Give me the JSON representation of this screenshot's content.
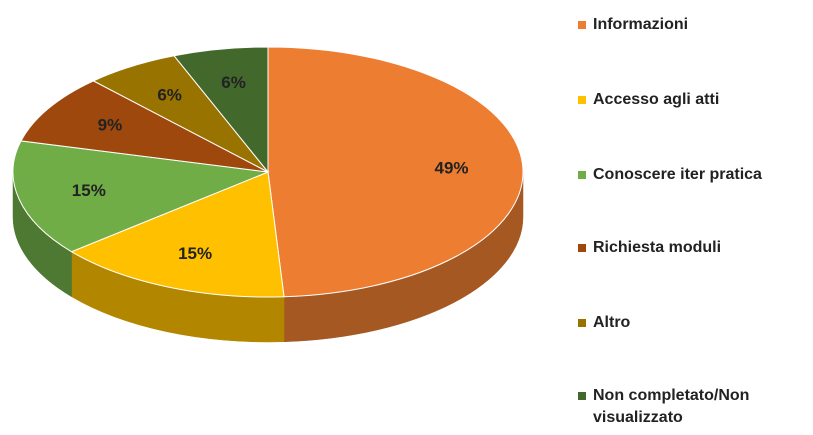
{
  "chart_data": {
    "type": "pie",
    "categories": [
      "Informazioni",
      "Accesso agli atti",
      "Conoscere iter pratica",
      "Richiesta moduli",
      "Altro",
      "Non completato/Non visualizzato"
    ],
    "values": [
      49,
      15,
      15,
      9,
      6,
      6
    ],
    "value_labels": [
      "49%",
      "15%",
      "15%",
      "9%",
      "6%",
      "6%"
    ],
    "colors": [
      "#ed7d31",
      "#ffc000",
      "#70ad47",
      "#9e480e",
      "#997300",
      "#43682b"
    ],
    "legend": "right"
  }
}
